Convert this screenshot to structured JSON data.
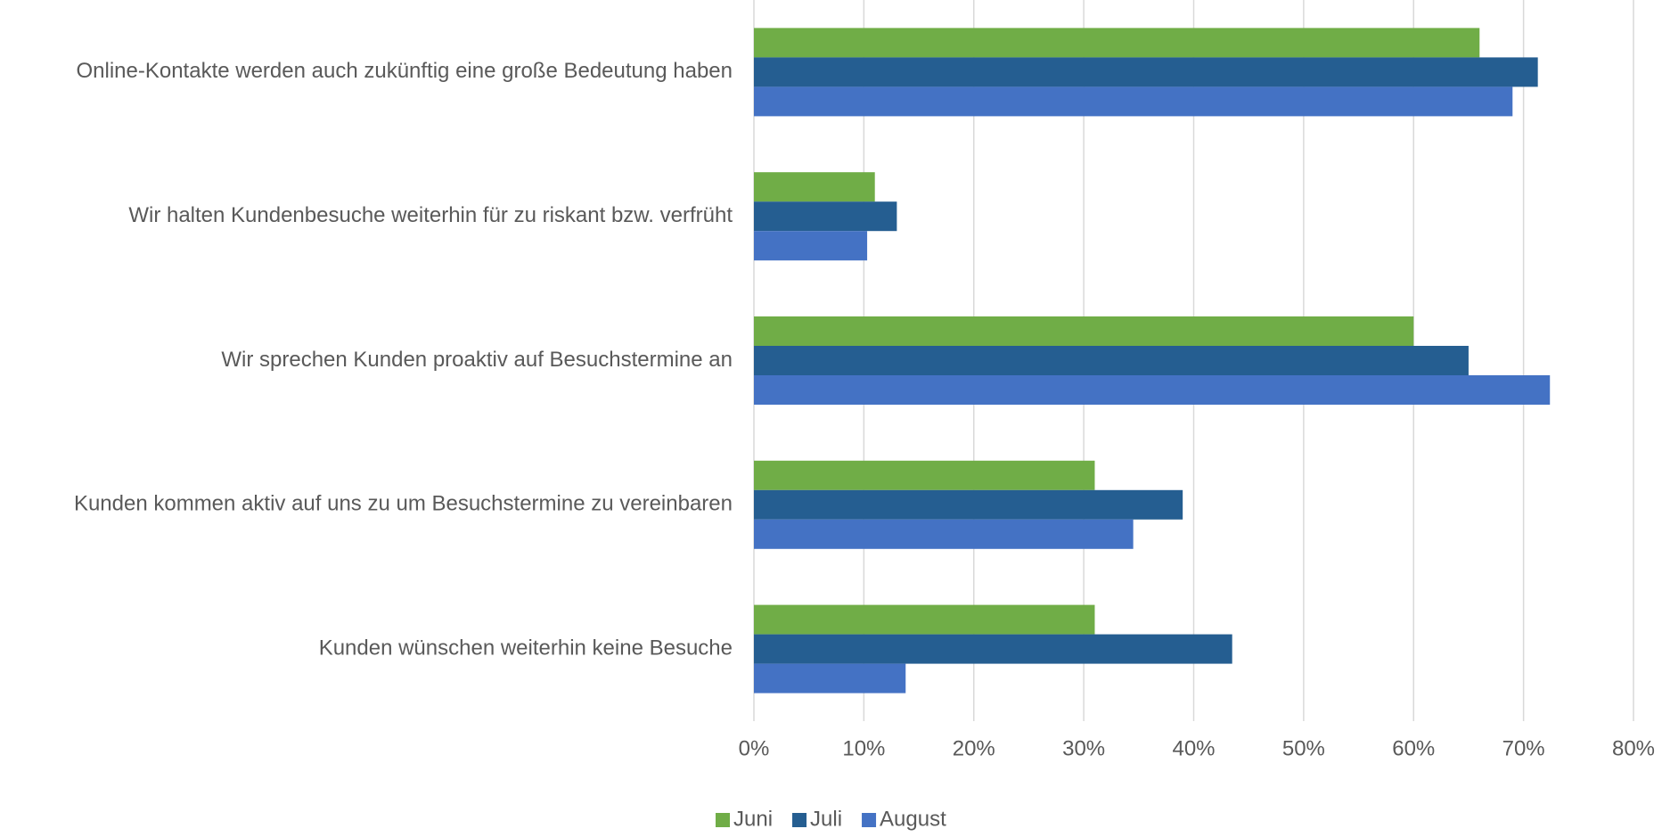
{
  "chart_data": {
    "type": "barh",
    "categories": [
      "Online-Kontakte werden auch zukünftig eine große Bedeutung haben",
      "Wir halten Kundenbesuche weiterhin für zu riskant bzw. verfrüht",
      "Wir sprechen Kunden proaktiv auf Besuchstermine an",
      "Kunden kommen aktiv auf uns zu um Besuchstermine zu vereinbaren",
      "Kunden wünschen weiterhin keine Besuche"
    ],
    "series": [
      {
        "name": "Juni",
        "color": "#70ad47",
        "values": [
          66,
          11,
          60,
          31,
          31
        ]
      },
      {
        "name": "Juli",
        "color": "#255e91",
        "values": [
          71.3,
          13,
          65,
          39,
          43.5
        ]
      },
      {
        "name": "August",
        "color": "#4472c4",
        "values": [
          69,
          10.3,
          72.4,
          34.5,
          13.8
        ]
      }
    ],
    "xlim": [
      0,
      80
    ],
    "xticks": [
      {
        "value": 0,
        "label": "0%"
      },
      {
        "value": 10,
        "label": "10%"
      },
      {
        "value": 20,
        "label": "20%"
      },
      {
        "value": 30,
        "label": "30%"
      },
      {
        "value": 40,
        "label": "40%"
      },
      {
        "value": 50,
        "label": "50%"
      },
      {
        "value": 60,
        "label": "60%"
      },
      {
        "value": 70,
        "label": "70%"
      },
      {
        "value": 80,
        "label": "80%"
      }
    ],
    "grid": true,
    "legend": "bottom"
  }
}
